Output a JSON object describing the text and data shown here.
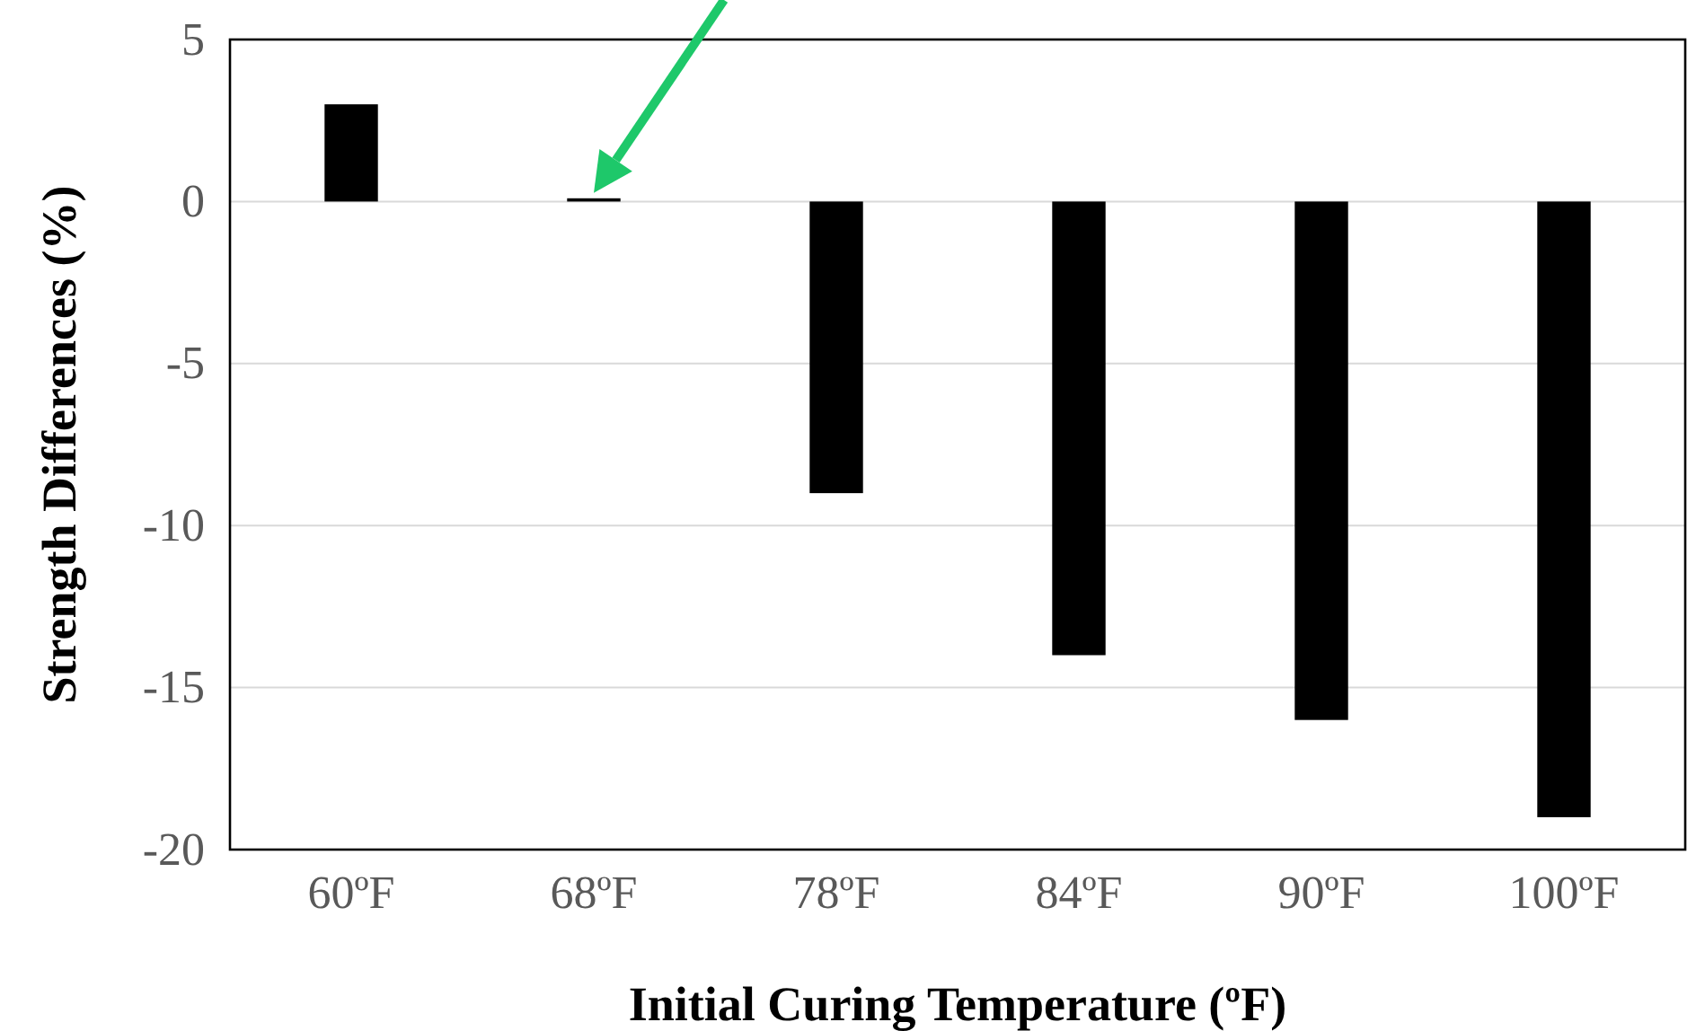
{
  "chart_data": {
    "type": "bar",
    "xlabel": "Initial Curing Temperature (ºF)",
    "ylabel": "Strength Differences (%)",
    "categories": [
      "60ºF",
      "68ºF",
      "78ºF",
      "84ºF",
      "90ºF",
      "100ºF"
    ],
    "values": [
      3,
      0.1,
      -9,
      -14,
      -16,
      -19
    ],
    "color": "#000000",
    "ylim": [
      -20,
      5
    ],
    "yticks": [
      -20,
      -15,
      -10,
      -5,
      0,
      5
    ],
    "grid": "y"
  }
}
